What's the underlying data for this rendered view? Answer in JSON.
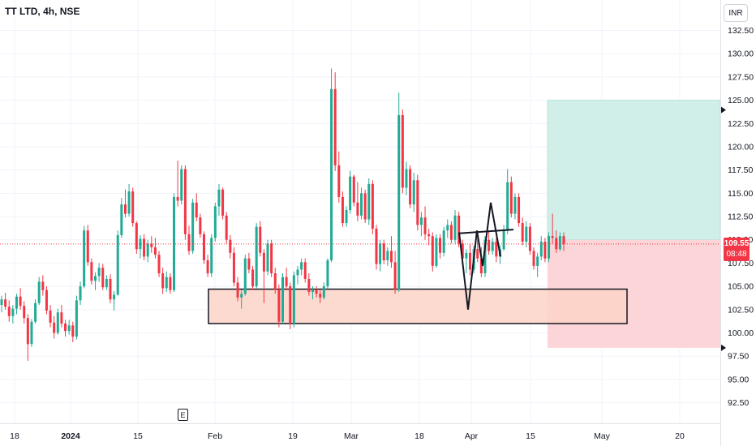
{
  "header": {
    "title": "TT LTD, 4h, NSE",
    "currency_button": "INR"
  },
  "price_tag": {
    "price": "109.55",
    "countdown": "08:48"
  },
  "event_marker": {
    "label": "E"
  },
  "colors": {
    "up": "#22ab94",
    "down": "#f23645",
    "target_zone": "#d1efe9",
    "stop_zone": "#fbd5d8",
    "demand_zone": "#fcd3c7",
    "grid": "#f0f3fa"
  },
  "chart_data": {
    "type": "candlestick",
    "title": "TT LTD, 4h, NSE",
    "ylim": [
      90.0,
      135.0
    ],
    "y_ticks": [
      "132.50",
      "130.00",
      "127.50",
      "125.00",
      "122.50",
      "120.00",
      "117.50",
      "115.00",
      "112.50",
      "110.00",
      "107.50",
      "105.00",
      "102.50",
      "100.00",
      "97.50",
      "95.00",
      "92.50"
    ],
    "x_ticks": [
      "18",
      "2024",
      "15",
      "Feb",
      "19",
      "Mar",
      "18",
      "Apr",
      "15",
      "May",
      "20"
    ],
    "current_price": 109.55,
    "ohlc": [
      [
        103.0,
        104.0,
        102.2,
        103.6
      ],
      [
        103.6,
        104.3,
        102.5,
        102.8
      ],
      [
        102.8,
        103.5,
        101.2,
        101.8
      ],
      [
        101.8,
        103.0,
        101.0,
        102.6
      ],
      [
        102.6,
        104.2,
        102.0,
        103.9
      ],
      [
        103.9,
        104.8,
        102.5,
        102.9
      ],
      [
        102.9,
        103.4,
        101.0,
        101.6
      ],
      [
        101.6,
        102.0,
        97.0,
        98.8
      ],
      [
        98.8,
        101.5,
        98.5,
        101.2
      ],
      [
        101.2,
        103.6,
        101.0,
        103.2
      ],
      [
        103.2,
        106.0,
        103.0,
        105.5
      ],
      [
        105.5,
        106.2,
        104.0,
        104.6
      ],
      [
        104.6,
        105.0,
        102.0,
        102.4
      ],
      [
        102.4,
        103.0,
        100.6,
        101.1
      ],
      [
        101.1,
        101.8,
        99.4,
        100.0
      ],
      [
        100.0,
        102.6,
        99.8,
        102.2
      ],
      [
        102.2,
        103.0,
        100.6,
        101.0
      ],
      [
        101.0,
        101.4,
        99.6,
        100.2
      ],
      [
        100.2,
        101.4,
        99.8,
        100.8
      ],
      [
        100.8,
        101.2,
        99.0,
        99.6
      ],
      [
        99.6,
        104.0,
        99.3,
        103.5
      ],
      [
        103.5,
        105.5,
        103.0,
        105.0
      ],
      [
        105.0,
        111.5,
        104.8,
        111.0
      ],
      [
        111.0,
        111.6,
        107.2,
        107.6
      ],
      [
        107.6,
        108.0,
        105.2,
        105.6
      ],
      [
        105.6,
        106.5,
        104.6,
        106.1
      ],
      [
        106.1,
        107.5,
        105.5,
        107.0
      ],
      [
        107.0,
        107.4,
        104.6,
        104.9
      ],
      [
        104.9,
        106.2,
        104.6,
        105.8
      ],
      [
        105.8,
        106.3,
        103.2,
        103.6
      ],
      [
        103.6,
        104.5,
        102.4,
        104.1
      ],
      [
        104.1,
        111.0,
        104.0,
        110.5
      ],
      [
        110.5,
        114.5,
        110.2,
        113.8
      ],
      [
        113.8,
        115.4,
        112.4,
        112.8
      ],
      [
        112.8,
        116.0,
        112.5,
        115.2
      ],
      [
        115.2,
        115.6,
        111.4,
        111.8
      ],
      [
        111.8,
        112.0,
        108.5,
        109.0
      ],
      [
        109.0,
        110.5,
        108.0,
        110.1
      ],
      [
        110.1,
        110.6,
        107.8,
        108.2
      ],
      [
        108.2,
        110.0,
        107.6,
        109.6
      ],
      [
        109.6,
        110.4,
        108.6,
        109.2
      ],
      [
        109.2,
        110.2,
        108.0,
        108.4
      ],
      [
        108.4,
        108.8,
        106.0,
        106.4
      ],
      [
        106.4,
        107.0,
        104.2,
        104.8
      ],
      [
        104.8,
        106.6,
        104.4,
        106.0
      ],
      [
        106.0,
        106.4,
        104.2,
        104.6
      ],
      [
        104.6,
        115.0,
        104.4,
        114.6
      ],
      [
        114.6,
        118.5,
        113.6,
        114.2
      ],
      [
        114.2,
        118.0,
        113.8,
        117.6
      ],
      [
        117.6,
        118.0,
        110.0,
        110.6
      ],
      [
        110.6,
        111.5,
        108.4,
        108.8
      ],
      [
        108.8,
        114.4,
        108.5,
        114.0
      ],
      [
        114.0,
        115.0,
        112.0,
        112.4
      ],
      [
        112.4,
        112.8,
        110.2,
        110.6
      ],
      [
        110.6,
        110.9,
        107.4,
        107.8
      ],
      [
        107.8,
        108.4,
        106.0,
        106.4
      ],
      [
        106.4,
        110.6,
        106.0,
        110.2
      ],
      [
        110.2,
        114.0,
        109.8,
        113.6
      ],
      [
        113.6,
        116.0,
        112.6,
        115.4
      ],
      [
        115.4,
        115.6,
        112.2,
        112.6
      ],
      [
        112.6,
        113.0,
        109.6,
        110.0
      ],
      [
        110.0,
        110.5,
        108.0,
        108.6
      ],
      [
        108.6,
        109.2,
        105.0,
        105.4
      ],
      [
        105.4,
        106.0,
        103.4,
        103.8
      ],
      [
        103.8,
        104.6,
        102.6,
        104.2
      ],
      [
        104.2,
        108.4,
        104.0,
        108.0
      ],
      [
        108.0,
        108.6,
        106.4,
        106.8
      ],
      [
        106.8,
        107.2,
        104.6,
        105.0
      ],
      [
        105.0,
        111.8,
        104.8,
        111.4
      ],
      [
        111.4,
        112.0,
        108.2,
        108.6
      ],
      [
        108.6,
        109.0,
        103.2,
        106.6
      ],
      [
        106.6,
        110.0,
        106.2,
        109.6
      ],
      [
        109.6,
        110.0,
        106.0,
        106.4
      ],
      [
        106.4,
        107.0,
        104.2,
        104.6
      ],
      [
        104.6,
        105.2,
        100.6,
        101.2
      ],
      [
        101.2,
        106.4,
        101.0,
        106.0
      ],
      [
        106.0,
        107.0,
        104.6,
        105.0
      ],
      [
        105.0,
        105.4,
        100.4,
        101.0
      ],
      [
        101.0,
        106.6,
        100.6,
        106.2
      ],
      [
        106.2,
        107.2,
        105.2,
        106.8
      ],
      [
        106.8,
        108.0,
        106.2,
        107.6
      ],
      [
        107.6,
        108.0,
        105.4,
        105.8
      ],
      [
        105.8,
        106.4,
        104.0,
        104.4
      ],
      [
        104.4,
        105.0,
        103.6,
        104.6
      ],
      [
        104.6,
        105.0,
        103.8,
        104.2
      ],
      [
        104.2,
        104.6,
        103.2,
        103.8
      ],
      [
        103.8,
        105.4,
        103.6,
        105.0
      ],
      [
        105.0,
        108.0,
        104.8,
        107.8
      ],
      [
        107.8,
        128.4,
        107.6,
        126.2
      ],
      [
        126.2,
        128.0,
        117.4,
        118.0
      ],
      [
        118.0,
        119.5,
        114.0,
        114.6
      ],
      [
        114.6,
        115.2,
        111.4,
        111.8
      ],
      [
        111.8,
        113.6,
        111.4,
        113.2
      ],
      [
        113.2,
        117.4,
        112.8,
        116.8
      ],
      [
        116.8,
        117.0,
        113.6,
        114.0
      ],
      [
        114.0,
        116.2,
        112.0,
        112.6
      ],
      [
        112.6,
        115.6,
        112.2,
        115.0
      ],
      [
        115.0,
        115.4,
        111.8,
        112.2
      ],
      [
        112.2,
        116.6,
        111.6,
        116.0
      ],
      [
        116.0,
        116.4,
        110.6,
        111.2
      ],
      [
        111.2,
        111.6,
        106.8,
        107.4
      ],
      [
        107.4,
        110.0,
        106.6,
        109.6
      ],
      [
        109.6,
        110.0,
        107.4,
        107.8
      ],
      [
        107.8,
        109.2,
        107.2,
        108.8
      ],
      [
        108.8,
        110.4,
        107.0,
        107.6
      ],
      [
        107.6,
        108.8,
        104.2,
        104.6
      ],
      [
        104.6,
        125.8,
        104.4,
        123.4
      ],
      [
        123.4,
        124.0,
        115.0,
        115.6
      ],
      [
        115.6,
        118.4,
        114.8,
        117.6
      ],
      [
        117.6,
        118.0,
        113.4,
        113.8
      ],
      [
        113.8,
        117.2,
        113.0,
        116.4
      ],
      [
        116.4,
        117.0,
        111.0,
        111.6
      ],
      [
        111.6,
        113.0,
        110.4,
        112.4
      ],
      [
        112.4,
        113.6,
        110.0,
        110.6
      ],
      [
        110.6,
        111.2,
        109.4,
        110.4
      ],
      [
        110.4,
        110.8,
        106.6,
        107.2
      ],
      [
        107.2,
        110.6,
        107.0,
        110.2
      ],
      [
        110.2,
        110.6,
        108.0,
        108.6
      ],
      [
        108.6,
        111.4,
        108.2,
        111.0
      ],
      [
        111.0,
        112.2,
        110.2,
        111.6
      ],
      [
        111.6,
        112.0,
        109.6,
        110.0
      ],
      [
        110.0,
        113.2,
        109.6,
        112.6
      ],
      [
        112.6,
        113.0,
        109.2,
        109.6
      ],
      [
        109.6,
        110.0,
        107.6,
        108.0
      ],
      [
        108.0,
        109.0,
        106.4,
        108.6
      ],
      [
        108.6,
        109.6,
        106.2,
        106.8
      ],
      [
        106.8,
        109.4,
        106.4,
        109.0
      ],
      [
        109.0,
        110.4,
        107.6,
        108.0
      ],
      [
        108.0,
        109.2,
        106.0,
        106.4
      ],
      [
        106.4,
        110.4,
        106.0,
        110.0
      ],
      [
        110.0,
        111.0,
        108.4,
        108.8
      ],
      [
        108.8,
        110.2,
        108.4,
        109.8
      ],
      [
        109.8,
        110.2,
        107.6,
        108.2
      ],
      [
        108.2,
        109.4,
        107.4,
        109.0
      ],
      [
        109.0,
        111.6,
        108.8,
        111.0
      ],
      [
        111.0,
        117.6,
        110.6,
        116.2
      ],
      [
        116.2,
        116.8,
        112.4,
        112.8
      ],
      [
        112.8,
        115.0,
        112.2,
        114.6
      ],
      [
        114.6,
        115.0,
        111.4,
        111.8
      ],
      [
        111.8,
        112.4,
        109.4,
        109.8
      ],
      [
        109.8,
        112.0,
        109.2,
        111.4
      ],
      [
        111.4,
        111.8,
        108.4,
        108.8
      ],
      [
        108.8,
        109.2,
        106.8,
        107.2
      ],
      [
        107.2,
        108.6,
        106.0,
        108.2
      ],
      [
        108.2,
        110.4,
        107.8,
        109.8
      ],
      [
        109.8,
        110.2,
        107.6,
        108.0
      ],
      [
        108.0,
        110.8,
        107.6,
        110.4
      ],
      [
        110.4,
        112.8,
        109.6,
        110.2
      ],
      [
        110.2,
        111.0,
        108.6,
        109.0
      ],
      [
        109.0,
        110.8,
        108.8,
        110.4
      ],
      [
        110.4,
        110.8,
        108.8,
        109.55
      ]
    ]
  },
  "drawings": {
    "demand_zone": {
      "x0": 0,
      "x1": 0,
      "y_top": 104.7,
      "y_bottom": 101.0
    },
    "position": {
      "entry": 110.0,
      "target": 125.0,
      "stop": 98.4
    },
    "trendline": {
      "from": 110.7,
      "to": 111.1
    },
    "zigzag": [
      110.8,
      102.5,
      111.0,
      107.2,
      114.0,
      108.2
    ]
  }
}
